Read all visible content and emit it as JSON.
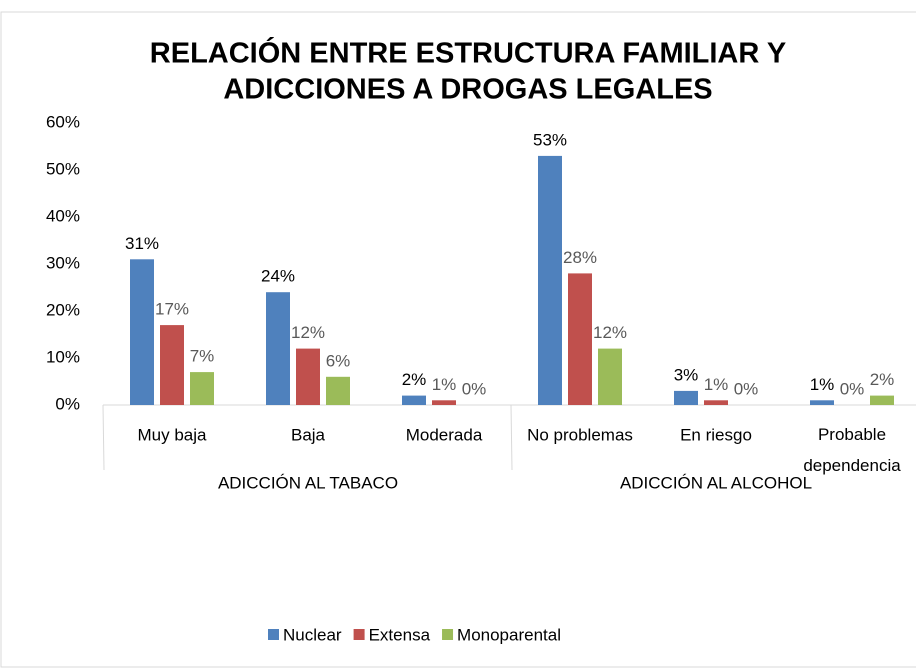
{
  "chart_data": {
    "type": "bar",
    "title": [
      "RELACIÓN ENTRE ESTRUCTURA FAMILIAR Y",
      "ADICCIONES A DROGAS LEGALES"
    ],
    "categories": [
      "Muy baja",
      "Baja",
      "Moderada",
      "No problemas",
      "En riesgo",
      "Probable dependencia"
    ],
    "groups": [
      {
        "label": "ADICCIÓN AL TABACO",
        "span": 3
      },
      {
        "label": "ADICCIÓN AL ALCOHOL",
        "span": 3
      }
    ],
    "series": [
      {
        "name": "Nuclear",
        "color": "#4f81bd",
        "values": [
          31,
          24,
          2,
          53,
          3,
          1
        ],
        "value_labels": [
          "31%",
          "24%",
          "2%",
          "53%",
          "3%",
          "1%"
        ]
      },
      {
        "name": "Extensa",
        "color": "#c0504d",
        "values": [
          17,
          12,
          1,
          28,
          1,
          0
        ],
        "value_labels": [
          "17%",
          "12%",
          "1%",
          "28%",
          "1%",
          "0%"
        ]
      },
      {
        "name": "Monoparental",
        "color": "#9bbb59",
        "values": [
          7,
          6,
          0,
          12,
          0,
          2
        ],
        "value_labels": [
          "7%",
          "6%",
          "0%",
          "12%",
          "0%",
          "2%"
        ]
      }
    ],
    "ylim": [
      0,
      60
    ],
    "yticks": [
      {
        "value": 0,
        "label": "0%"
      },
      {
        "value": 10,
        "label": "10%"
      },
      {
        "value": 20,
        "label": "20%"
      },
      {
        "value": 30,
        "label": "30%"
      },
      {
        "value": 40,
        "label": "40%"
      },
      {
        "value": 50,
        "label": "50%"
      },
      {
        "value": 60,
        "label": "60%"
      }
    ],
    "grid": false,
    "legend": "bottom"
  }
}
